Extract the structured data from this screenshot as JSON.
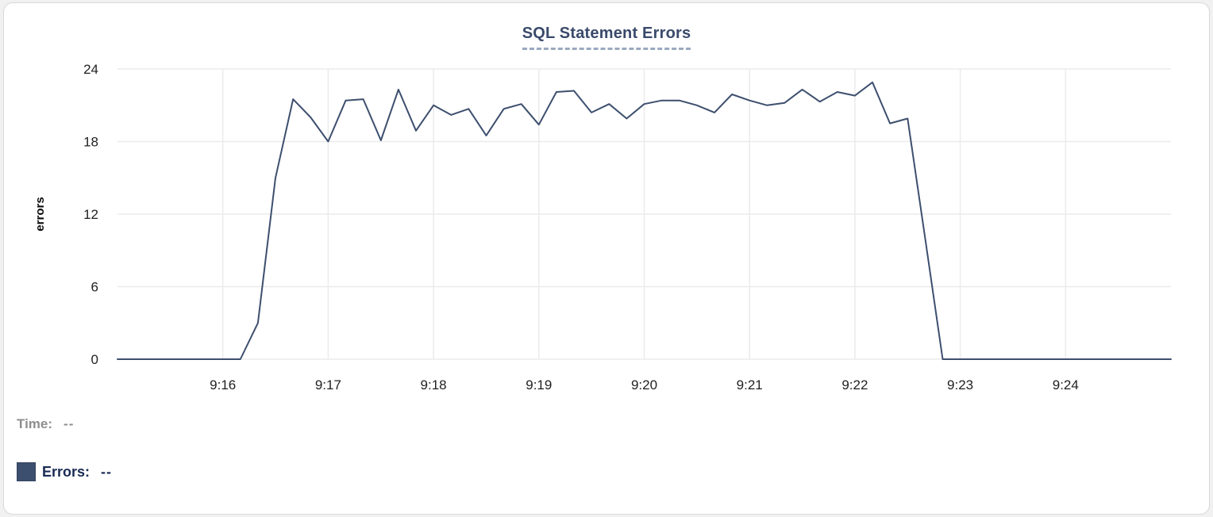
{
  "legend": {
    "time_label": "Time:",
    "time_value": "--",
    "errors_label": "Errors:",
    "errors_value": "--",
    "swatch_color": "#3d4f6e"
  },
  "chart_data": {
    "type": "line",
    "title": "SQL Statement Errors",
    "xlabel": "",
    "ylabel": "errors",
    "x_start": "9:15:00",
    "x_end": "9:25:00",
    "interval_seconds": 10,
    "x_tick_labels": [
      "9:16",
      "9:17",
      "9:18",
      "9:19",
      "9:20",
      "9:21",
      "9:22",
      "9:23",
      "9:24"
    ],
    "y_ticks": [
      0,
      6,
      12,
      18,
      24
    ],
    "ylim": [
      0,
      24
    ],
    "grid": true,
    "legend_position": "bottom-left",
    "line_color": "#3d4f6e",
    "grid_color": "#ebebeb",
    "tick_label_color": "#212121",
    "series": [
      {
        "name": "Errors",
        "values": [
          0,
          0,
          0,
          0,
          0,
          0,
          0,
          0,
          3,
          15,
          21.5,
          20,
          18,
          21.4,
          21.5,
          18.1,
          22.3,
          18.9,
          21,
          20.2,
          20.7,
          18.5,
          20.7,
          21.1,
          19.4,
          22.1,
          22.2,
          20.4,
          21.1,
          19.9,
          21.1,
          21.4,
          21.4,
          21,
          20.4,
          21.9,
          21.4,
          21,
          21.2,
          22.3,
          21.3,
          22.1,
          21.8,
          22.9,
          19.5,
          19.9,
          10,
          0,
          0,
          0,
          0,
          0,
          0,
          0,
          0,
          0,
          0,
          0,
          0,
          0,
          0
        ]
      }
    ]
  }
}
